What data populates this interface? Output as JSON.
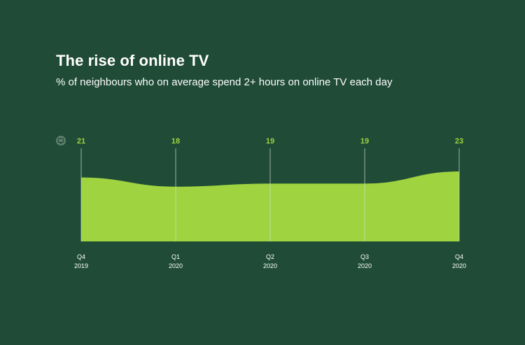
{
  "title": "The rise of online TV",
  "subtitle": "% of neighbours who on average spend 2+ hours on online TV each day",
  "colors": {
    "background": "#1f4b37",
    "area": "#9fd33f",
    "value_label": "#9fd33f",
    "gridline": "#c9d9c9",
    "icon": "#5d7f6c"
  },
  "icon": "tv-icon",
  "chart_data": {
    "type": "area",
    "title": "The rise of online TV",
    "subtitle": "% of neighbours who on average spend 2+ hours on online TV each day",
    "categories": [
      {
        "quarter": "Q4",
        "year": "2019"
      },
      {
        "quarter": "Q1",
        "year": "2020"
      },
      {
        "quarter": "Q2",
        "year": "2020"
      },
      {
        "quarter": "Q3",
        "year": "2020"
      },
      {
        "quarter": "Q4",
        "year": "2020"
      }
    ],
    "values": [
      21,
      18,
      19,
      19,
      23
    ],
    "value_labels": [
      "21",
      "18",
      "19",
      "19",
      "23"
    ],
    "ylim": [
      0,
      27
    ],
    "xlabel": "",
    "ylabel": "",
    "grid": "vertical",
    "legend": "none"
  }
}
